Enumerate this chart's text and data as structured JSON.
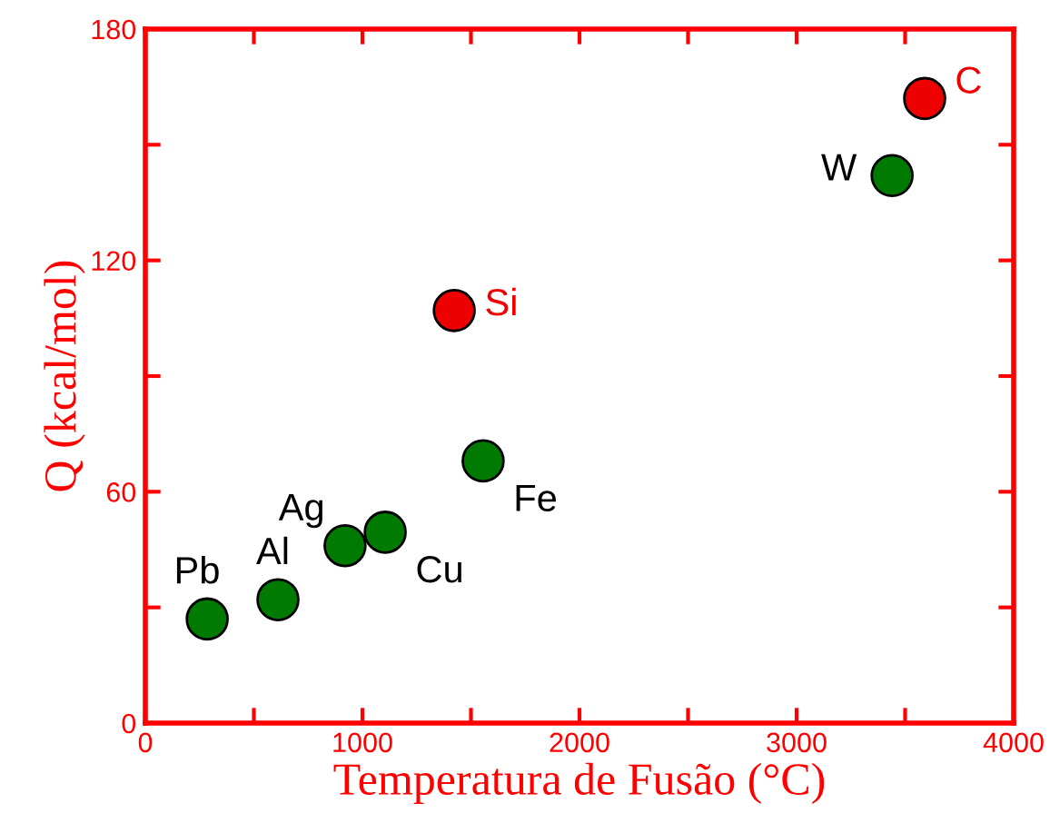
{
  "chart_data": {
    "type": "scatter",
    "xlabel": "Temperatura de Fusão (°C)",
    "ylabel": "Q (kcal/mol)",
    "xlim": [
      0,
      4000
    ],
    "ylim": [
      0,
      180
    ],
    "xticks": [
      0,
      {
        "value": 500,
        "label": null
      },
      1000,
      {
        "value": 1500,
        "label": null
      },
      2000,
      {
        "value": 2500,
        "label": null
      },
      3000,
      {
        "value": 3500,
        "label": null
      },
      4000
    ],
    "yticks": [
      0,
      {
        "value": 30,
        "label": null
      },
      60,
      {
        "value": 90,
        "label": null
      },
      120,
      {
        "value": 150,
        "label": null
      },
      180
    ],
    "marker": "circle",
    "series": [
      {
        "color": "#007a00",
        "x": [
          285,
          611,
          920,
          1105,
          1556,
          3440
        ],
        "values": [
          27,
          32,
          46,
          49.5,
          68,
          142
        ]
      },
      {
        "color": "#ee0000",
        "x": [
          1423,
          3590
        ],
        "values": [
          107,
          162
        ]
      }
    ],
    "annotations": [
      {
        "text": "Pb",
        "x": 285,
        "y": 27
      },
      {
        "text": "Al",
        "x": 611,
        "y": 32
      },
      {
        "text": "Ag",
        "x": 920,
        "y": 46
      },
      {
        "text": "Cu",
        "x": 1105,
        "y": 49.5
      },
      {
        "text": "Fe",
        "x": 1556,
        "y": 68
      },
      {
        "text": "W",
        "x": 3440,
        "y": 142
      },
      {
        "text": "Si",
        "x": 1423,
        "y": 107
      },
      {
        "text": "C",
        "x": 3590,
        "y": 162
      }
    ]
  }
}
